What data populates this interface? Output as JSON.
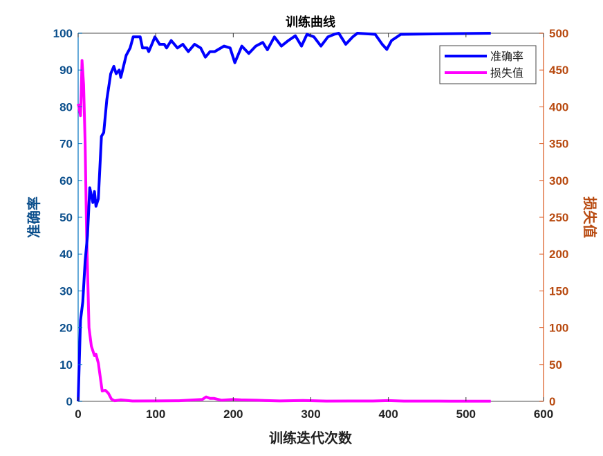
{
  "chart_data": {
    "type": "line",
    "title": "训练曲线",
    "xlabel": "训练迭代次数",
    "ylabel_left": "准确率",
    "ylabel_right": "损失值",
    "xlim": [
      0,
      600
    ],
    "ylim_left": [
      0,
      100
    ],
    "ylim_right": [
      0,
      500
    ],
    "xticks": [
      "0",
      "100",
      "200",
      "300",
      "400",
      "500",
      "600"
    ],
    "yticks_left": [
      "0",
      "10",
      "20",
      "30",
      "40",
      "50",
      "60",
      "70",
      "80",
      "90",
      "100"
    ],
    "yticks_right": [
      "0",
      "50",
      "100",
      "150",
      "200",
      "250",
      "300",
      "350",
      "400",
      "450",
      "500"
    ],
    "grid": false,
    "legend_position": "top-right",
    "colors": {
      "left_axis_text": "#0b4f8c",
      "left_axis_line": "#0072BD",
      "right_axis_text": "#b84a10",
      "right_axis_line": "#D95319"
    },
    "series": [
      {
        "name": "准确率",
        "axis": "left",
        "color": "#0000FF",
        "x": [
          0,
          3,
          6,
          9,
          12,
          15,
          19,
          21,
          23,
          26,
          30,
          33,
          37,
          42,
          46,
          49,
          53,
          55,
          62,
          67,
          71,
          80,
          83,
          89,
          91,
          95,
          99,
          105,
          111,
          114,
          120,
          128,
          135,
          142,
          150,
          158,
          164,
          170,
          176,
          188,
          196,
          202,
          211,
          220,
          229,
          238,
          244,
          253,
          262,
          271,
          280,
          288,
          295,
          304,
          313,
          322,
          330,
          336,
          345,
          354,
          360,
          383,
          392,
          398,
          404,
          416,
          532
        ],
        "y": [
          0,
          22,
          27,
          38,
          45,
          58,
          54,
          57,
          53,
          55,
          72,
          73,
          82,
          89,
          91,
          89,
          90,
          88,
          94,
          96,
          99,
          99,
          96,
          96,
          95,
          97,
          99,
          97,
          97,
          96,
          98,
          96,
          97,
          95,
          97,
          96,
          93.5,
          95,
          95,
          96.5,
          96,
          92,
          96.5,
          94.5,
          96.5,
          97.5,
          95.5,
          99,
          96.5,
          98,
          99.3,
          96.5,
          99.7,
          99,
          96.5,
          99,
          99.7,
          100,
          97,
          99,
          100,
          99.7,
          97,
          95.6,
          98,
          99.7,
          100
        ]
      },
      {
        "name": "损失值",
        "axis": "right",
        "color": "#FF00FF",
        "x": [
          0,
          1,
          3,
          4,
          5,
          7,
          9,
          11,
          14,
          17,
          21,
          23,
          26,
          31,
          35,
          39,
          43,
          47,
          55,
          70,
          100,
          130,
          160,
          165,
          170,
          175,
          185,
          200,
          210,
          230,
          260,
          290,
          320,
          350,
          380,
          400,
          420,
          450,
          480,
          500,
          532
        ],
        "y": [
          404,
          400,
          388,
          420,
          463,
          430,
          351,
          226,
          100,
          75,
          62,
          64,
          52,
          14,
          15,
          11,
          3,
          0.8,
          2,
          0.5,
          0.6,
          0.8,
          2.5,
          6,
          4,
          4,
          1.5,
          2.5,
          2,
          1.5,
          0.6,
          1.2,
          0.4,
          0.5,
          0.5,
          1,
          0.4,
          0.4,
          0.3,
          0.3,
          0.3
        ]
      }
    ]
  }
}
